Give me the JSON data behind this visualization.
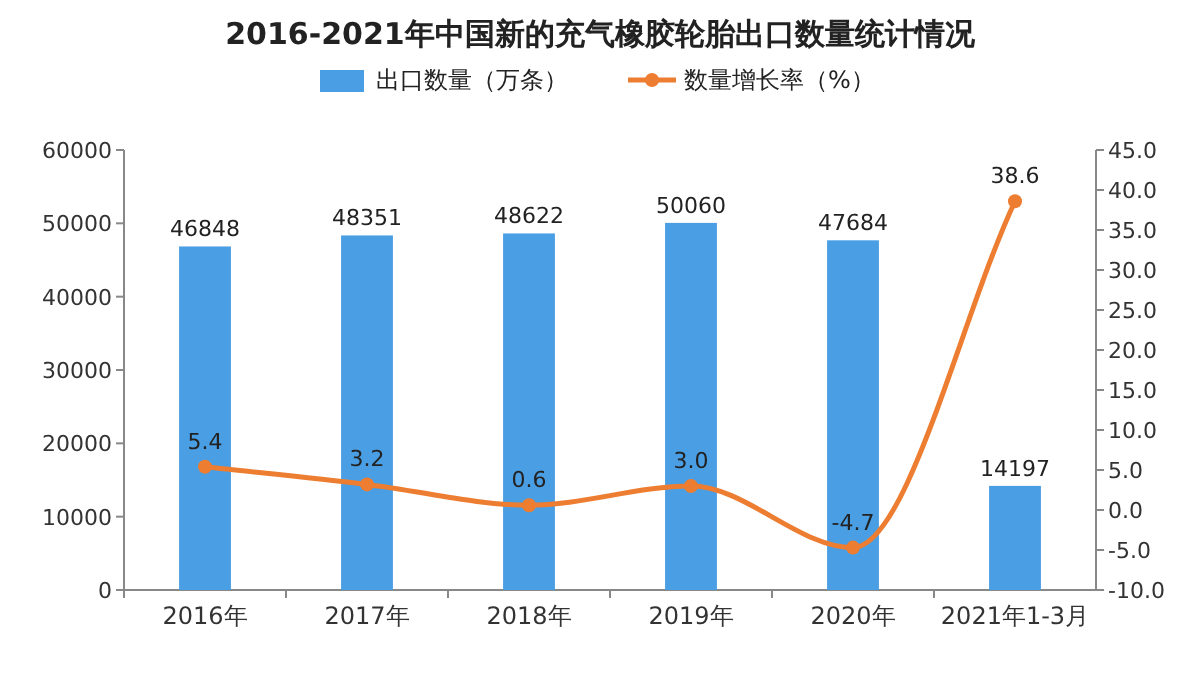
{
  "chart_data": {
    "type": "bar",
    "title": "2016-2021年中国新的充气橡胶轮胎出口数量统计情况",
    "categories": [
      "2016年",
      "2017年",
      "2018年",
      "2019年",
      "2020年",
      "2021年1-3月"
    ],
    "series": [
      {
        "name": "出口数量（万条）",
        "color": "#4a9ee3",
        "values": [
          46848,
          48351,
          48622,
          50060,
          47684,
          14197
        ],
        "data_labels": true
      },
      {
        "name": "数量增长率（%）",
        "type": "line",
        "axis": "y2",
        "color": "#ed7d31",
        "marker": "circle",
        "values": [
          5.4,
          3.2,
          0.6,
          3.0,
          -4.7,
          38.6
        ],
        "value_labels": [
          "5.4",
          "3.2",
          "0.6",
          "3.0",
          "-4.7",
          "38.6"
        ]
      }
    ],
    "ylim": [
      0,
      60000
    ],
    "yticks": [
      0,
      10000,
      20000,
      30000,
      40000,
      50000,
      60000
    ],
    "y2lim": [
      -10,
      45
    ],
    "y2ticks": [
      {
        "value": -10,
        "label": "-10.0"
      },
      {
        "value": -5,
        "label": "-5.0"
      },
      {
        "value": 0,
        "label": "0.0"
      },
      {
        "value": 5,
        "label": "5.0"
      },
      {
        "value": 10,
        "label": "10.0"
      },
      {
        "value": 15,
        "label": "15.0"
      },
      {
        "value": 20,
        "label": "20.0"
      },
      {
        "value": 25,
        "label": "25.0"
      },
      {
        "value": 30,
        "label": "30.0"
      },
      {
        "value": 35,
        "label": "35.0"
      },
      {
        "value": 40,
        "label": "40.0"
      },
      {
        "value": 45,
        "label": "45.0"
      }
    ],
    "legend": "top",
    "grid": false
  }
}
